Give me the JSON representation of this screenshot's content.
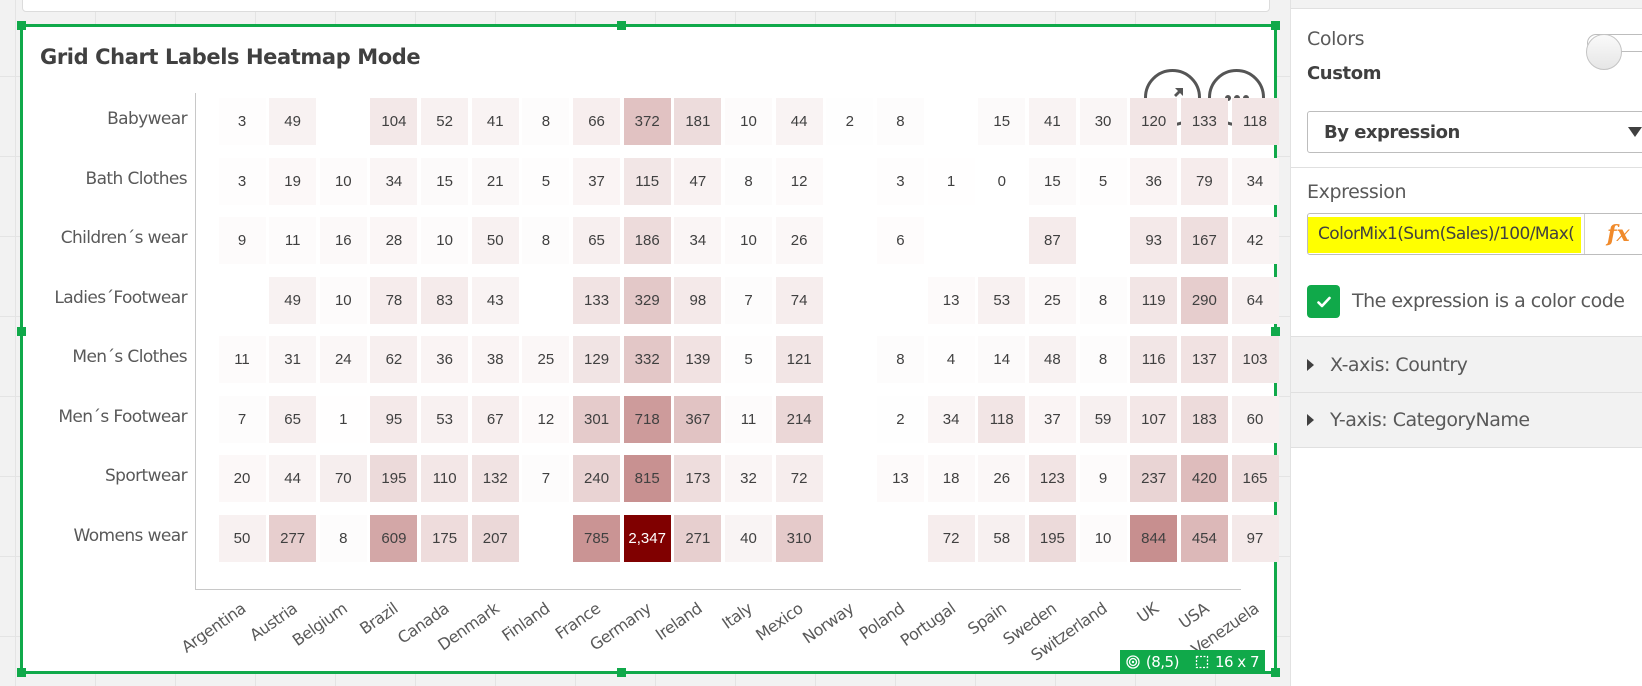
{
  "chart": {
    "title": "Grid Chart Labels Heatmap Mode",
    "expand_icon": "expand-arrows-icon",
    "more_icon": "more-horizontal-icon",
    "status": {
      "position_icon": "target-icon",
      "position": "(8,5)",
      "size_icon": "grid-size-icon",
      "size": "16 x 7"
    }
  },
  "chart_data": {
    "type": "heatmap",
    "title": "Grid Chart Labels Heatmap Mode",
    "xlabel": "Country",
    "ylabel": "CategoryName",
    "x": [
      "Argentina",
      "Austria",
      "Belgium",
      "Brazil",
      "Canada",
      "Denmark",
      "Finland",
      "France",
      "Germany",
      "Ireland",
      "Italy",
      "Mexico",
      "Norway",
      "Poland",
      "Portugal",
      "Spain",
      "Sweden",
      "Switzerland",
      "UK",
      "USA",
      "Venezuela"
    ],
    "y": [
      "Babywear",
      "Bath Clothes",
      "Children´s wear",
      "Ladies´Footwear",
      "Men´s Clothes",
      "Men´s Footwear",
      "Sportwear",
      "Womens wear"
    ],
    "values": [
      [
        3,
        49,
        null,
        104,
        52,
        41,
        8,
        66,
        372,
        181,
        10,
        44,
        2,
        8,
        null,
        15,
        41,
        30,
        120,
        133,
        118
      ],
      [
        3,
        19,
        10,
        34,
        15,
        21,
        5,
        37,
        115,
        47,
        8,
        12,
        null,
        3,
        1,
        0,
        15,
        5,
        36,
        79,
        34
      ],
      [
        9,
        11,
        16,
        28,
        10,
        50,
        8,
        65,
        186,
        34,
        10,
        26,
        null,
        6,
        null,
        null,
        87,
        null,
        93,
        167,
        42
      ],
      [
        null,
        49,
        10,
        78,
        83,
        43,
        null,
        133,
        329,
        98,
        7,
        74,
        null,
        null,
        13,
        53,
        25,
        8,
        119,
        290,
        64
      ],
      [
        11,
        31,
        24,
        62,
        36,
        38,
        25,
        129,
        332,
        139,
        5,
        121,
        null,
        8,
        4,
        14,
        48,
        8,
        116,
        137,
        103
      ],
      [
        7,
        65,
        1,
        95,
        53,
        67,
        12,
        301,
        718,
        367,
        11,
        214,
        null,
        2,
        34,
        118,
        37,
        59,
        107,
        183,
        60
      ],
      [
        20,
        44,
        70,
        195,
        110,
        132,
        7,
        240,
        815,
        173,
        32,
        72,
        null,
        13,
        18,
        26,
        123,
        9,
        237,
        420,
        165
      ],
      [
        50,
        277,
        8,
        609,
        175,
        207,
        null,
        785,
        2347,
        271,
        40,
        310,
        null,
        null,
        72,
        58,
        195,
        10,
        844,
        454,
        97
      ]
    ],
    "max_value": 2347,
    "max_label": "2,347",
    "color_low": "#ffffff",
    "color_high": "#800000",
    "grid": false,
    "legend": "none"
  },
  "panel": {
    "colors_label": "Colors",
    "colors_mode": "Custom",
    "toggle_state": "off",
    "color_select_value": "By expression",
    "expression_label": "Expression",
    "expression_value": "ColorMix1(Sum(Sales)/100/Max(",
    "expression_visible": "ColorMix1(Sum(Sales)/100/Max(",
    "fx_label": "fx",
    "checkbox_label": "The expression is a color code",
    "checkbox_checked": true,
    "x_axis_label": "X-axis: Country",
    "y_axis_label": "Y-axis: CategoryName"
  },
  "colors": {
    "selection_green": "#10a94a",
    "highlight_yellow": "#ffff00",
    "fx_orange": "#f08a2b"
  }
}
